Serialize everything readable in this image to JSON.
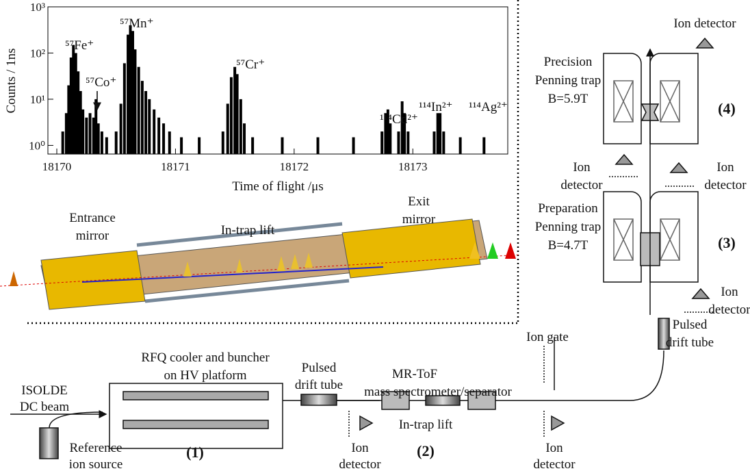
{
  "chart_data": {
    "type": "stem",
    "x_label": "Time of flight /μs",
    "y_label": "Counts / 1ns",
    "log_y": true,
    "color": "#000000",
    "x": [
      18170.05,
      18170.08,
      18170.1,
      18170.12,
      18170.14,
      18170.16,
      18170.18,
      18170.2,
      18170.22,
      18170.25,
      18170.28,
      18170.31,
      18170.33,
      18170.35,
      18170.38,
      18170.42,
      18170.5,
      18170.54,
      18170.57,
      18170.6,
      18170.62,
      18170.64,
      18170.66,
      18170.69,
      18170.72,
      18170.75,
      18170.78,
      18170.82,
      18170.86,
      18170.9,
      18170.95,
      18171.05,
      18171.2,
      18171.4,
      18171.44,
      18171.47,
      18171.5,
      18171.52,
      18171.55,
      18171.58,
      18171.65,
      18171.9,
      18172.2,
      18172.5,
      18172.74,
      18172.77,
      18172.79,
      18172.81,
      18172.88,
      18172.91,
      18172.93,
      18172.96,
      18173.18,
      18173.21,
      18173.23,
      18173.26,
      18173.4,
      18173.6
    ],
    "values": [
      2,
      5,
      20,
      80,
      150,
      100,
      40,
      15,
      6,
      4,
      5,
      4,
      10,
      3,
      2,
      1.5,
      2,
      8,
      60,
      250,
      400,
      300,
      120,
      50,
      25,
      15,
      10,
      6,
      4,
      3,
      2,
      1.5,
      1.5,
      2,
      8,
      30,
      50,
      35,
      10,
      3,
      1.5,
      1.5,
      1.5,
      1.5,
      2,
      5,
      6,
      3,
      2,
      9,
      5,
      2,
      2,
      5,
      5,
      2,
      1.5,
      1.5
    ],
    "xlim": [
      18169.925,
      18173.8
    ],
    "ylim": [
      0.65,
      1000
    ],
    "xticks": [
      18170,
      18171,
      18172,
      18173
    ],
    "yticks": [
      {
        "value": 1,
        "label": "10⁰"
      },
      {
        "value": 10,
        "label": "10¹"
      },
      {
        "value": 100,
        "label": "10²"
      },
      {
        "value": 1000,
        "label": "10³"
      }
    ],
    "annotations": [
      "⁵⁷Fe⁺",
      "⁵⁷Co⁺",
      "⁵⁷Mn⁺",
      "⁵⁷Cr⁺",
      "¹¹⁴Cd²⁺",
      "¹¹⁴In²⁺",
      "¹¹⁴Ag²⁺"
    ]
  },
  "mrtof_figure": {
    "entrance_mirror": [
      "Entrance",
      "mirror"
    ],
    "in_trap_lift": "In-trap lift",
    "exit_mirror": [
      "Exit",
      "mirror"
    ]
  },
  "setup_diagram": {
    "top_detector": "Ion detector",
    "precision_trap": [
      "Precision",
      "Penning trap",
      "B=5.9T"
    ],
    "label_4": "(4)",
    "detector_left_4": [
      "Ion",
      "detector"
    ],
    "detector_right_4": [
      "Ion",
      "detector"
    ],
    "preparation_trap": [
      "Preparation",
      "Penning trap",
      "B=4.7T"
    ],
    "label_3": "(3)",
    "detector_3": [
      "Ion",
      "detector"
    ],
    "pulsed_drift_tube_2": [
      "Pulsed",
      "drift tube"
    ],
    "ion_gate": "Ion gate",
    "rfq": [
      "RFQ cooler and buncher",
      "on HV platform"
    ],
    "isolde": [
      "ISOLDE",
      "DC beam"
    ],
    "reference_source": [
      "Reference",
      "ion source"
    ],
    "label_1": "(1)",
    "pulsed_drift_tube_1": [
      "Pulsed",
      "drift tube"
    ],
    "mr_tof": [
      "MR-ToF",
      "mass spectrometer/separator"
    ],
    "in_trap_lift": "In-trap lift",
    "label_2": "(2)",
    "detector_2": [
      "Ion",
      "detector"
    ],
    "detector_gate": [
      "Ion",
      "detector"
    ]
  }
}
